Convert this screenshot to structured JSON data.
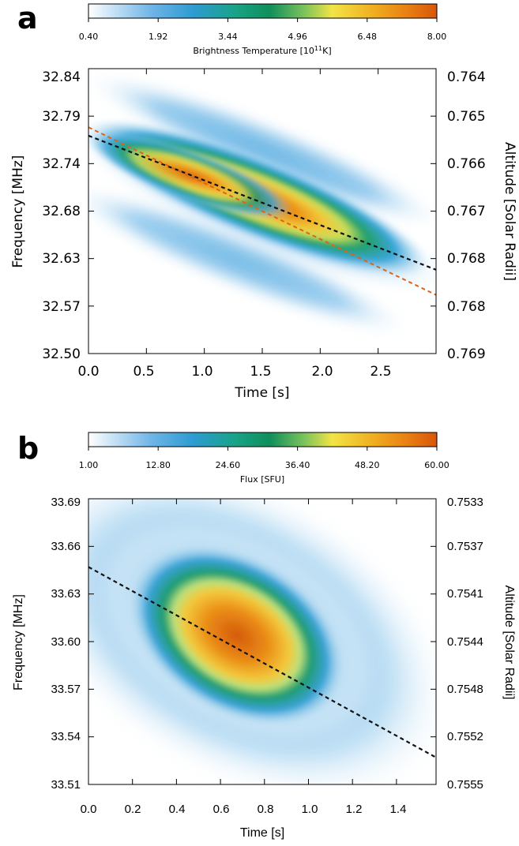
{
  "chart_data": [
    {
      "panel": "a",
      "type": "heatmap",
      "colorbar": {
        "ticks": [
          "0.40",
          "1.92",
          "3.44",
          "4.96",
          "6.48",
          "8.00"
        ],
        "range": [
          0.4,
          8.0
        ],
        "label": "Brightness Temperature [10",
        "label_sup": "11",
        "label_end": "K]"
      },
      "xlabel": "Time [s]",
      "ylabel": "Frequency [MHz]",
      "y2label": "Altitude [Solar Radii]",
      "xlim": [
        0.0,
        3.0
      ],
      "ylim": [
        32.5,
        32.84
      ],
      "xticks": [
        "0.0",
        "0.5",
        "1.0",
        "1.5",
        "2.0",
        "2.5"
      ],
      "yticks": [
        "32.50",
        "32.57",
        "32.63",
        "32.68",
        "32.74",
        "32.79",
        "32.84"
      ],
      "y2ticks": [
        "0.769",
        "0.768",
        "0.768",
        "0.767",
        "0.766",
        "0.765",
        "0.764"
      ],
      "lines": [
        {
          "style": "black-dashed",
          "x": [
            0.0,
            3.0
          ],
          "y": [
            32.76,
            32.6
          ]
        },
        {
          "style": "orange-dashed",
          "x": [
            0.0,
            3.0
          ],
          "y": [
            32.77,
            32.57
          ]
        }
      ]
    },
    {
      "panel": "b",
      "type": "heatmap",
      "colorbar": {
        "ticks": [
          "1.00",
          "12.80",
          "24.60",
          "36.40",
          "48.20",
          "60.00"
        ],
        "range": [
          1.0,
          60.0
        ],
        "label": "Flux [SFU]"
      },
      "xlabel": "Time [s]",
      "ylabel": "Frequency [MHz]",
      "y2label": "Altitude [Solar Radii]",
      "xlim": [
        0.0,
        1.58
      ],
      "ylim": [
        33.51,
        33.69
      ],
      "xticks": [
        "0.0",
        "0.2",
        "0.4",
        "0.6",
        "0.8",
        "1.0",
        "1.2",
        "1.4"
      ],
      "yticks": [
        "33.51",
        "33.54",
        "33.57",
        "33.60",
        "33.63",
        "33.66",
        "33.69"
      ],
      "y2ticks": [
        "0.7555",
        "0.7552",
        "0.7548",
        "0.7544",
        "0.7541",
        "0.7537",
        "0.7533"
      ],
      "lines": [
        {
          "style": "black-dashed",
          "x": [
            0.0,
            1.58
          ],
          "y": [
            33.647,
            33.527
          ]
        }
      ]
    }
  ]
}
